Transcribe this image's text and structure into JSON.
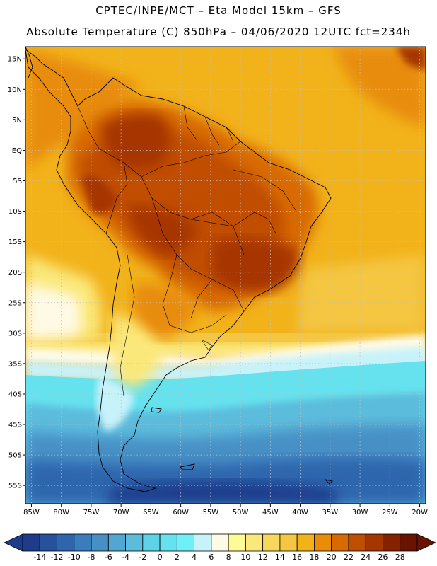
{
  "header": {
    "line1": "CPTEC/INPE/MCT –  Eta Model 15km – GFS",
    "line2": "Absolute Temperature (C) 850hPa – 04/06/2020 12UTC fct=234h"
  },
  "map_axes": {
    "lon_labels": [
      "85W",
      "80W",
      "75W",
      "70W",
      "65W",
      "60W",
      "55W",
      "50W",
      "45W",
      "40W",
      "35W",
      "30W",
      "25W",
      "20W"
    ],
    "lat_labels": [
      "15N",
      "10N",
      "5N",
      "EQ",
      "5S",
      "10S",
      "15S",
      "20S",
      "25S",
      "30S",
      "35S",
      "40S",
      "45S",
      "50S",
      "55S"
    ],
    "lon_range": [
      -86,
      -19
    ],
    "lat_range": [
      17,
      -58
    ],
    "gridlines": true
  },
  "colorbar": {
    "labels": [
      "-14",
      "-12",
      "-10",
      "-8",
      "-6",
      "-4",
      "-2",
      "0",
      "2",
      "4",
      "6",
      "8",
      "10",
      "12",
      "14",
      "16",
      "18",
      "20",
      "22",
      "24",
      "26",
      "28"
    ],
    "colors": [
      "#1e3c8c",
      "#26529c",
      "#2e66ad",
      "#3a7cbc",
      "#4690c6",
      "#52a6d2",
      "#5cbcdc",
      "#5ed2e6",
      "#66e2ee",
      "#70f0f6",
      "#c8f2fa",
      "#fefae6",
      "#fefa98",
      "#fbe87a",
      "#f8d85c",
      "#f4c642",
      "#f2b21a",
      "#e88c0a",
      "#d86a00",
      "#c04e00",
      "#a63600",
      "#842200",
      "#6a1400"
    ],
    "low_arrow_color": "#1e3c8c",
    "high_arrow_color": "#6a1400"
  }
}
